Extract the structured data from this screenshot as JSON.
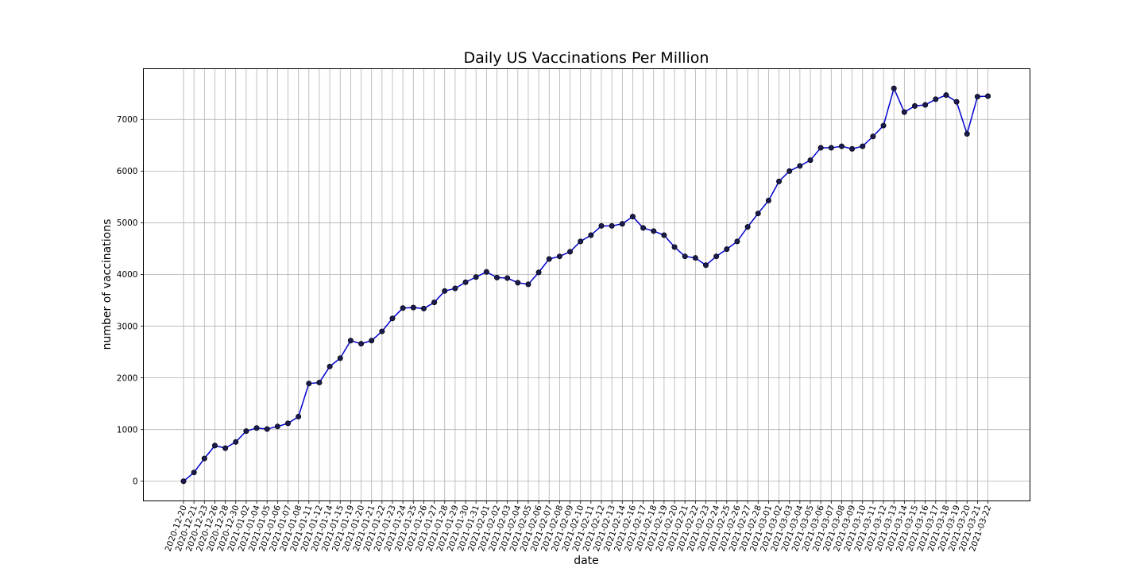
{
  "chart_data": {
    "type": "line",
    "title": "Daily US Vaccinations Per Million",
    "xlabel": "date",
    "ylabel": "number of vaccinations",
    "grid": true,
    "ylim": [
      -380,
      7980
    ],
    "yticks": [
      0,
      1000,
      2000,
      3000,
      4000,
      5000,
      6000,
      7000
    ],
    "line_color": "#0000cc",
    "marker_color": "#1a1a4d",
    "series": [
      {
        "x": [
          "2020-12-20",
          "2020-12-21",
          "2020-12-23",
          "2020-12-26",
          "2020-12-28",
          "2020-12-30",
          "2021-01-02",
          "2021-01-04",
          "2021-01-05",
          "2021-01-06",
          "2021-01-07",
          "2021-01-08",
          "2021-01-11",
          "2021-01-12",
          "2021-01-14",
          "2021-01-15",
          "2021-01-19",
          "2021-01-20",
          "2021-01-21",
          "2021-01-22",
          "2021-01-23",
          "2021-01-24",
          "2021-01-25",
          "2021-01-26",
          "2021-01-27",
          "2021-01-28",
          "2021-01-29",
          "2021-01-30",
          "2021-01-31",
          "2021-02-01",
          "2021-02-02",
          "2021-02-03",
          "2021-02-04",
          "2021-02-05",
          "2021-02-06",
          "2021-02-07",
          "2021-02-08",
          "2021-02-09",
          "2021-02-10",
          "2021-02-11",
          "2021-02-12",
          "2021-02-13",
          "2021-02-14",
          "2021-02-16",
          "2021-02-17",
          "2021-02-18",
          "2021-02-19",
          "2021-02-20",
          "2021-02-21",
          "2021-02-22",
          "2021-02-23",
          "2021-02-24",
          "2021-02-25",
          "2021-02-26",
          "2021-02-27",
          "2021-02-28",
          "2021-03-01",
          "2021-03-02",
          "2021-03-03",
          "2021-03-04",
          "2021-03-05",
          "2021-03-06",
          "2021-03-07",
          "2021-03-08",
          "2021-03-09",
          "2021-03-10",
          "2021-03-11",
          "2021-03-12",
          "2021-03-13",
          "2021-03-14",
          "2021-03-15",
          "2021-03-16",
          "2021-03-17",
          "2021-03-18",
          "2021-03-19",
          "2021-03-20",
          "2021-03-21",
          "2021-03-22"
        ],
        "y": [
          0,
          170,
          440,
          690,
          640,
          760,
          970,
          1030,
          1010,
          1060,
          1120,
          1250,
          1890,
          1910,
          2220,
          2380,
          2720,
          2660,
          2720,
          2900,
          3150,
          3350,
          3360,
          3340,
          3460,
          3680,
          3730,
          3850,
          3950,
          4050,
          3940,
          3930,
          3840,
          3810,
          4040,
          4300,
          4350,
          4440,
          4640,
          4760,
          4940,
          4940,
          4980,
          5120,
          4900,
          4840,
          4760,
          4530,
          4350,
          4320,
          4180,
          4350,
          4490,
          4640,
          4920,
          5180,
          5430,
          5800,
          6000,
          6100,
          6210,
          6450,
          6450,
          6480,
          6430,
          6480,
          6670,
          6880,
          7600,
          7140,
          7260,
          7280,
          7390,
          7470,
          7340,
          6720,
          7440,
          7450
        ]
      }
    ]
  }
}
